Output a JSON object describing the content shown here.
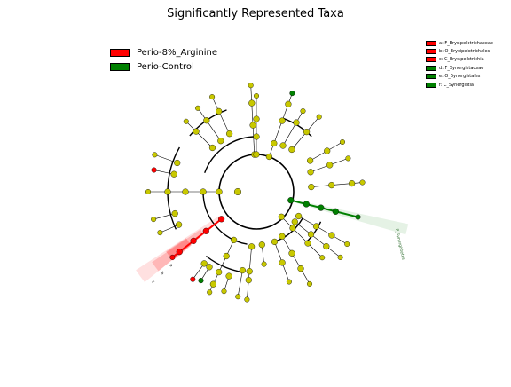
{
  "chart_data": {
    "type": "cladogram",
    "title": "Significantly Represented Taxa",
    "groups": [
      {
        "name": "Perio-8%_Arginine",
        "color": "#ff0000"
      },
      {
        "name": "Perio-Control",
        "color": "#008000"
      }
    ],
    "biomarkers": [
      {
        "letter": "a",
        "taxon": "F_Erysipelotrichaceae",
        "group": "Perio-8%_Arginine",
        "color": "#ff0000"
      },
      {
        "letter": "b",
        "taxon": "O_Erysipelotrichales",
        "group": "Perio-8%_Arginine",
        "color": "#ff0000"
      },
      {
        "letter": "c",
        "taxon": "C_Erysipelotrichia",
        "group": "Perio-8%_Arginine",
        "color": "#ff0000"
      },
      {
        "letter": "d",
        "taxon": "F_Synergistaceae",
        "group": "Perio-Control",
        "color": "#008000"
      },
      {
        "letter": "e",
        "taxon": "O_Synergistales",
        "group": "Perio-Control",
        "color": "#008000"
      },
      {
        "letter": "f",
        "taxon": "C_Synergistia",
        "group": "Perio-Control",
        "color": "#008000"
      }
    ],
    "clade_labels": [
      {
        "text": "P_Synergistetes",
        "group": "Perio-Control"
      },
      {
        "text": "c",
        "group": "Perio-8%_Arginine"
      },
      {
        "text": "b",
        "group": "Perio-8%_Arginine"
      },
      {
        "text": "a",
        "group": "Perio-8%_Arginine"
      }
    ],
    "colors": {
      "node": "#c8c800",
      "enriched_red": "#ff0000",
      "enriched_green": "#008000"
    }
  }
}
